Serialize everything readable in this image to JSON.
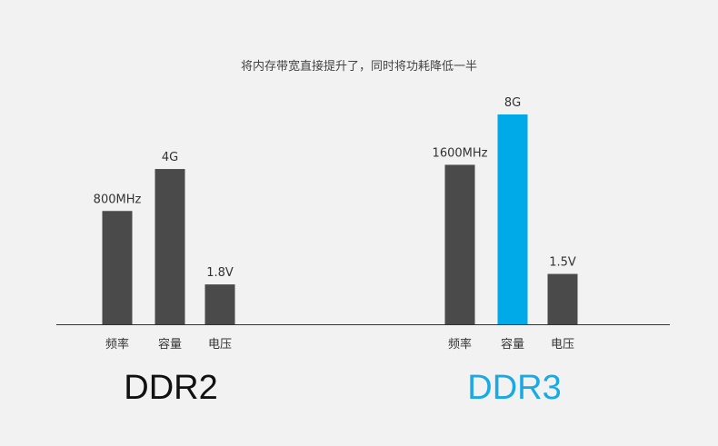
{
  "chart_data": {
    "type": "bar",
    "title": "将内存带宽直接提升了，同时将功耗降低一半",
    "xlabel": "",
    "ylabel": "",
    "grid": false,
    "categories": [
      "频率",
      "容量",
      "电压"
    ],
    "groups": [
      {
        "name": "DDR2",
        "values": [
          800,
          4,
          1.8
        ],
        "labels": [
          "800MHz",
          "4G",
          "1.8V"
        ],
        "heights_relative": [
          0.54,
          0.74,
          0.19
        ],
        "colors": [
          "#4a4a4a",
          "#4a4a4a",
          "#4a4a4a"
        ]
      },
      {
        "name": "DDR3",
        "values": [
          1600,
          8,
          1.5
        ],
        "labels": [
          "1600MHz",
          "8G",
          "1.5V"
        ],
        "heights_relative": [
          0.76,
          1.0,
          0.24
        ],
        "colors": [
          "#4a4a4a",
          "#00a9e8",
          "#4a4a4a"
        ]
      }
    ]
  },
  "colors": {
    "background": "#f2f2f2",
    "bar": "#4a4a4a",
    "highlight": "#00a9e8",
    "ddr2_title": "#111111",
    "ddr3_title": "#19a9e5",
    "baseline": "#333333"
  }
}
